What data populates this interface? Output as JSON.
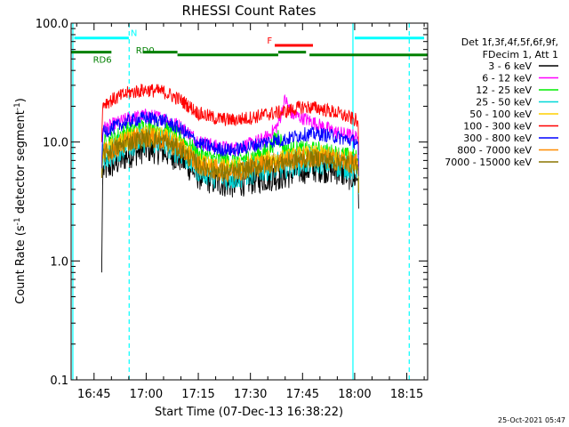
{
  "chart_data": {
    "type": "line",
    "title": "RHESSI Count Rates",
    "xlabel": "Start Time (07-Dec-13 16:38:22)",
    "ylabel_main": "Count Rate (s",
    "ylabel_sup1": "-1",
    "ylabel_mid": " detector segment",
    "ylabel_sup2": "-1",
    "ylabel_end": ")",
    "x_ticks": [
      {
        "minutes": 45,
        "label": "16:45"
      },
      {
        "minutes": 60,
        "label": "17:00"
      },
      {
        "minutes": 75,
        "label": "17:15"
      },
      {
        "minutes": 90,
        "label": "17:30"
      },
      {
        "minutes": 105,
        "label": "17:45"
      },
      {
        "minutes": 120,
        "label": "18:00"
      },
      {
        "minutes": 135,
        "label": "18:15"
      }
    ],
    "y_ticks": [
      {
        "value": 0.1,
        "label": "0.1"
      },
      {
        "value": 1,
        "label": "1.0"
      },
      {
        "value": 10,
        "label": "10.0"
      },
      {
        "value": 100,
        "label": "100.0"
      }
    ],
    "y_scale": "log",
    "ylim": [
      0.1,
      100
    ],
    "xlim_minutes": [
      38.4,
      141
    ],
    "legend_position": "right",
    "legend_header": [
      "Det 1f,3f,4f,5f,6f,9f,",
      "FDecim 1, Att 1"
    ],
    "series": [
      {
        "name": "3 - 6 keV",
        "color": "#000000",
        "points": [
          [
            47.2,
            0.8
          ],
          [
            47.5,
            5.8
          ],
          [
            50,
            6.3
          ],
          [
            55,
            7.8
          ],
          [
            60,
            8.8
          ],
          [
            65,
            8.3
          ],
          [
            70,
            7.2
          ],
          [
            75,
            5.2
          ],
          [
            80,
            4.6
          ],
          [
            85,
            4.4
          ],
          [
            90,
            4.7
          ],
          [
            95,
            5.0
          ],
          [
            100,
            5.2
          ],
          [
            105,
            5.8
          ],
          [
            110,
            6.0
          ],
          [
            115,
            5.7
          ],
          [
            118,
            5.2
          ],
          [
            121,
            4.9
          ],
          [
            121.2,
            2.2
          ]
        ],
        "noise": 0.12
      },
      {
        "name": "6 - 12 keV",
        "color": "#ff00ff",
        "points": [
          [
            47.2,
            5
          ],
          [
            47.5,
            13
          ],
          [
            50,
            13.8
          ],
          [
            55,
            15.8
          ],
          [
            60,
            16.8
          ],
          [
            65,
            15.9
          ],
          [
            70,
            13.5
          ],
          [
            75,
            10.3
          ],
          [
            80,
            9.2
          ],
          [
            85,
            8.8
          ],
          [
            90,
            9.6
          ],
          [
            95,
            11
          ],
          [
            98,
            14
          ],
          [
            100,
            23
          ],
          [
            102,
            17
          ],
          [
            105,
            16
          ],
          [
            110,
            13.8
          ],
          [
            115,
            12
          ],
          [
            121,
            11
          ],
          [
            121.2,
            4
          ]
        ],
        "noise": 0.06
      },
      {
        "name": "12 - 25 keV",
        "color": "#00ee00",
        "points": [
          [
            47.2,
            5
          ],
          [
            47.5,
            9.5
          ],
          [
            50,
            10.5
          ],
          [
            55,
            12.5
          ],
          [
            60,
            13.5
          ],
          [
            65,
            12.8
          ],
          [
            70,
            10.8
          ],
          [
            75,
            7.9
          ],
          [
            80,
            7.1
          ],
          [
            85,
            6.9
          ],
          [
            90,
            7.5
          ],
          [
            95,
            8.3
          ],
          [
            98,
            11.5
          ],
          [
            100,
            8.6
          ],
          [
            105,
            8.6
          ],
          [
            110,
            8.4
          ],
          [
            115,
            7.9
          ],
          [
            121,
            7.2
          ],
          [
            121.2,
            3
          ]
        ],
        "noise": 0.08
      },
      {
        "name": "25 - 50 keV",
        "color": "#00d8d8",
        "points": [
          [
            47.2,
            5
          ],
          [
            47.5,
            7.5
          ],
          [
            50,
            8.2
          ],
          [
            55,
            9.8
          ],
          [
            60,
            10.6
          ],
          [
            65,
            10
          ],
          [
            70,
            8.3
          ],
          [
            75,
            6.0
          ],
          [
            80,
            5.3
          ],
          [
            85,
            5.1
          ],
          [
            90,
            5.6
          ],
          [
            95,
            6.2
          ],
          [
            100,
            6.4
          ],
          [
            105,
            6.9
          ],
          [
            110,
            7.0
          ],
          [
            115,
            6.6
          ],
          [
            121,
            6.0
          ],
          [
            121.2,
            3
          ]
        ],
        "noise": 0.12
      },
      {
        "name": "50 - 100 keV",
        "color": "#ffd000",
        "points": [
          [
            47.2,
            5
          ],
          [
            47.5,
            8.3
          ],
          [
            50,
            9.1
          ],
          [
            55,
            10.8
          ],
          [
            60,
            11.7
          ],
          [
            65,
            11.1
          ],
          [
            70,
            9.3
          ],
          [
            75,
            6.9
          ],
          [
            80,
            6.2
          ],
          [
            85,
            6.0
          ],
          [
            90,
            6.5
          ],
          [
            95,
            7.1
          ],
          [
            100,
            7.3
          ],
          [
            105,
            7.8
          ],
          [
            110,
            7.9
          ],
          [
            115,
            7.5
          ],
          [
            121,
            6.9
          ],
          [
            121.2,
            3
          ]
        ],
        "noise": 0.08
      },
      {
        "name": "100 - 300 keV",
        "color": "#ff0000",
        "points": [
          [
            47.2,
            10
          ],
          [
            47.5,
            21
          ],
          [
            50,
            22.5
          ],
          [
            55,
            26
          ],
          [
            60,
            27.5
          ],
          [
            65,
            26.5
          ],
          [
            70,
            22.5
          ],
          [
            75,
            17.5
          ],
          [
            80,
            15.8
          ],
          [
            85,
            15.3
          ],
          [
            90,
            16
          ],
          [
            95,
            17.2
          ],
          [
            100,
            18
          ],
          [
            105,
            19.8
          ],
          [
            110,
            19.2
          ],
          [
            115,
            17.5
          ],
          [
            121,
            15
          ],
          [
            121.2,
            6
          ]
        ],
        "noise": 0.06
      },
      {
        "name": "300 - 800 keV",
        "color": "#0000ff",
        "points": [
          [
            47.2,
            6
          ],
          [
            47.5,
            12
          ],
          [
            50,
            13
          ],
          [
            55,
            15
          ],
          [
            60,
            16
          ],
          [
            65,
            15.2
          ],
          [
            70,
            12.8
          ],
          [
            75,
            9.8
          ],
          [
            80,
            8.8
          ],
          [
            85,
            8.5
          ],
          [
            90,
            9.2
          ],
          [
            95,
            10.1
          ],
          [
            100,
            10.5
          ],
          [
            105,
            11.6
          ],
          [
            110,
            11.7
          ],
          [
            115,
            11
          ],
          [
            121,
            10
          ],
          [
            121.2,
            4
          ]
        ],
        "noise": 0.06
      },
      {
        "name": "800 - 7000 keV",
        "color": "#ff8c00",
        "points": [
          [
            47.2,
            5
          ],
          [
            47.5,
            7.9
          ],
          [
            50,
            8.6
          ],
          [
            55,
            10.2
          ],
          [
            60,
            11
          ],
          [
            65,
            10.4
          ],
          [
            70,
            8.7
          ],
          [
            75,
            6.5
          ],
          [
            80,
            5.8
          ],
          [
            85,
            5.6
          ],
          [
            90,
            6.1
          ],
          [
            95,
            6.6
          ],
          [
            100,
            6.9
          ],
          [
            105,
            7.3
          ],
          [
            110,
            7.4
          ],
          [
            115,
            7.0
          ],
          [
            121,
            6.5
          ],
          [
            121.2,
            3
          ]
        ],
        "noise": 0.09
      },
      {
        "name": "7000 - 15000 keV",
        "color": "#8b7500",
        "points": [
          [
            47.2,
            5
          ],
          [
            47.5,
            7.8
          ],
          [
            50,
            8.5
          ],
          [
            55,
            10
          ],
          [
            60,
            10.8
          ],
          [
            65,
            10.2
          ],
          [
            70,
            8.6
          ],
          [
            75,
            6.4
          ],
          [
            80,
            5.7
          ],
          [
            85,
            5.5
          ],
          [
            90,
            6.0
          ],
          [
            95,
            6.5
          ],
          [
            100,
            6.8
          ],
          [
            105,
            7.2
          ],
          [
            110,
            7.3
          ],
          [
            115,
            6.9
          ],
          [
            121,
            6.4
          ],
          [
            121.2,
            3
          ]
        ],
        "noise": 0.08
      }
    ],
    "flag_bars": [
      {
        "label": "N",
        "color": "#00ffff",
        "level": 75,
        "segments": [
          [
            39.3,
            55
          ],
          [
            120,
            140
          ]
        ],
        "label_at": 55.5
      },
      {
        "label": "RD0",
        "color": "#008000",
        "level": 54,
        "segments": [
          [
            69,
            98
          ],
          [
            107,
            141
          ]
        ],
        "label_at": 57.0
      },
      {
        "label": "RD6",
        "color": "#008000",
        "level": 57,
        "segments": [
          [
            38.4,
            50
          ],
          [
            59,
            69
          ],
          [
            98,
            106
          ]
        ],
        "label_at": 44.7,
        "label_below": true
      },
      {
        "label": "F",
        "color": "#ff0000",
        "level": 65,
        "segments": [
          [
            97,
            108
          ]
        ],
        "label_at": 94.8
      }
    ],
    "vertical_lines": [
      {
        "minutes": 38.9,
        "color": "#00ffff",
        "style": "solid"
      },
      {
        "minutes": 55.1,
        "color": "#00ffff",
        "style": "dashed"
      },
      {
        "minutes": 119.5,
        "color": "#00ffff",
        "style": "solid"
      },
      {
        "minutes": 135.7,
        "color": "#00ffff",
        "style": "dashed"
      }
    ],
    "footer_timestamp": "25-Oct-2021 05:47"
  }
}
